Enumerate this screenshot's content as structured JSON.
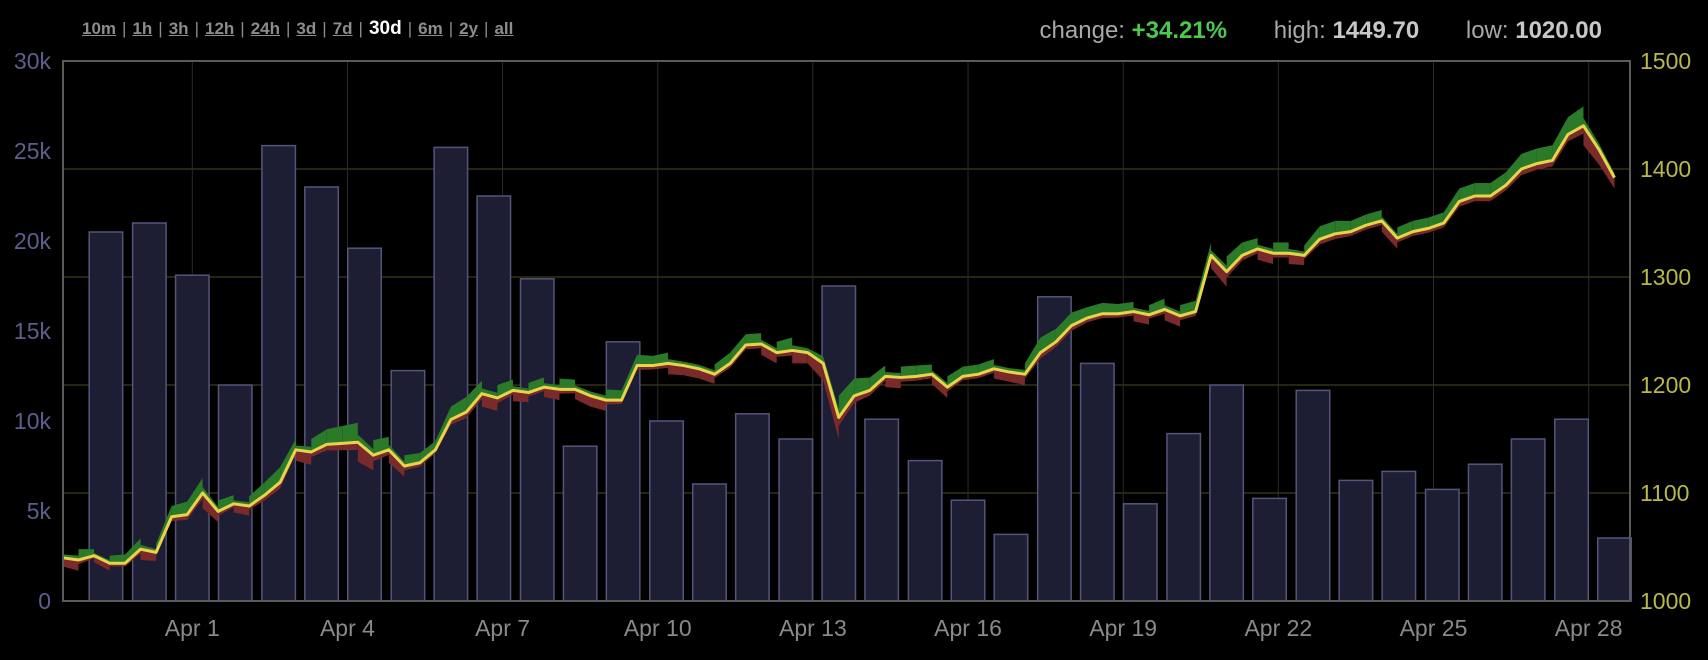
{
  "ranges": [
    {
      "label": "10m",
      "active": false
    },
    {
      "label": "1h",
      "active": false
    },
    {
      "label": "3h",
      "active": false
    },
    {
      "label": "12h",
      "active": false
    },
    {
      "label": "24h",
      "active": false
    },
    {
      "label": "3d",
      "active": false
    },
    {
      "label": "7d",
      "active": false
    },
    {
      "label": "30d",
      "active": true
    },
    {
      "label": "6m",
      "active": false
    },
    {
      "label": "2y",
      "active": false
    },
    {
      "label": "all",
      "active": false
    }
  ],
  "stats": {
    "change_label": "change:",
    "change_value": "+34.21%",
    "high_label": "high:",
    "high_value": "1449.70",
    "low_label": "low:",
    "low_value": "1020.00"
  },
  "colors": {
    "volume_bar": "#1d1d33",
    "volume_bar_border": "#55557a",
    "price_line": "#e8d44a",
    "band_up": "#2a7a2a",
    "band_down": "#7a2a2a",
    "grid_h": "#4a4a22",
    "grid_v": "#2a2a2a",
    "frame": "#5a5a5a"
  },
  "chart_data": {
    "type": "bar+line",
    "x_ticks": [
      "Apr 1",
      "Apr 4",
      "Apr 7",
      "Apr 10",
      "Apr 13",
      "Apr 16",
      "Apr 19",
      "Apr 22",
      "Apr 25",
      "Apr 28"
    ],
    "x_range": [
      -1.5,
      28.8
    ],
    "left_axis": {
      "range": [
        0,
        30000
      ],
      "tick_labels": [
        "0",
        "5k",
        "10k",
        "15k",
        "20k",
        "25k",
        "30k"
      ],
      "tick_values": [
        0,
        5000,
        10000,
        15000,
        20000,
        25000,
        30000
      ]
    },
    "right_axis": {
      "range": [
        1000,
        1500
      ],
      "tick_labels": [
        "1000",
        "1100",
        "1200",
        "1300",
        "1400",
        "1500"
      ],
      "tick_values": [
        1000,
        1100,
        1200,
        1300,
        1400,
        1500
      ]
    },
    "volume": {
      "x": [
        -0.67,
        0.17,
        1.0,
        1.83,
        2.67,
        3.5,
        4.33,
        5.17,
        6.0,
        6.83,
        7.67,
        8.5,
        9.33,
        10.17,
        11.0,
        11.83,
        12.67,
        13.5,
        14.33,
        15.17,
        16.0,
        16.83,
        17.67,
        18.5,
        19.33,
        20.17,
        21.0,
        21.83,
        22.67,
        23.5,
        24.33,
        25.17,
        26.0,
        26.83,
        27.67,
        28.5
      ],
      "values": [
        20500,
        21000,
        18100,
        12000,
        25300,
        23000,
        19600,
        12800,
        25200,
        22500,
        17900,
        8600,
        14400,
        10000,
        6500,
        10400,
        9000,
        17500,
        10100,
        7800,
        5600,
        3700,
        16900,
        13200,
        5400,
        9300,
        12000,
        5700,
        11700,
        6700,
        7200,
        6200,
        7600,
        9000,
        10100,
        3500
      ]
    },
    "price": {
      "x": [
        -1.5,
        -1.2,
        -0.9,
        -0.6,
        -0.3,
        0.0,
        0.3,
        0.6,
        0.9,
        1.2,
        1.5,
        1.8,
        2.1,
        2.4,
        2.7,
        3.0,
        3.3,
        3.6,
        3.9,
        4.2,
        4.5,
        4.8,
        5.1,
        5.4,
        5.7,
        6.0,
        6.3,
        6.6,
        6.9,
        7.2,
        7.5,
        7.8,
        8.1,
        8.4,
        8.7,
        9.0,
        9.3,
        9.6,
        9.9,
        10.2,
        10.5,
        10.8,
        11.1,
        11.4,
        11.7,
        12.0,
        12.3,
        12.6,
        12.9,
        13.2,
        13.5,
        13.8,
        14.1,
        14.4,
        14.7,
        15.0,
        15.3,
        15.6,
        15.9,
        16.2,
        16.5,
        16.8,
        17.1,
        17.4,
        17.7,
        18.0,
        18.3,
        18.6,
        18.9,
        19.2,
        19.5,
        19.8,
        20.1,
        20.4,
        20.7,
        21.0,
        21.3,
        21.6,
        21.9,
        22.2,
        22.5,
        22.8,
        23.1,
        23.4,
        23.7,
        24.0,
        24.3,
        24.6,
        24.9,
        25.2,
        25.5,
        25.8,
        26.1,
        26.4,
        26.7,
        27.0,
        27.3,
        27.6,
        27.9,
        28.2,
        28.5
      ],
      "values": [
        1040,
        1038,
        1042,
        1035,
        1035,
        1048,
        1045,
        1078,
        1080,
        1100,
        1083,
        1090,
        1088,
        1098,
        1110,
        1140,
        1138,
        1145,
        1146,
        1147,
        1135,
        1140,
        1125,
        1128,
        1140,
        1168,
        1175,
        1192,
        1188,
        1195,
        1193,
        1198,
        1196,
        1196,
        1190,
        1186,
        1186,
        1218,
        1218,
        1220,
        1218,
        1215,
        1210,
        1220,
        1237,
        1238,
        1230,
        1232,
        1230,
        1220,
        1170,
        1190,
        1195,
        1208,
        1207,
        1208,
        1210,
        1198,
        1208,
        1210,
        1215,
        1212,
        1210,
        1230,
        1240,
        1255,
        1262,
        1266,
        1266,
        1268,
        1265,
        1270,
        1264,
        1268,
        1320,
        1305,
        1320,
        1326,
        1322,
        1322,
        1320,
        1335,
        1340,
        1342,
        1348,
        1352,
        1336,
        1342,
        1345,
        1350,
        1370,
        1375,
        1375,
        1385,
        1400,
        1405,
        1408,
        1432,
        1440,
        1418,
        1392
      ],
      "band_width": [
        8,
        10,
        6,
        7,
        8,
        10,
        8,
        10,
        12,
        14,
        10,
        8,
        9,
        12,
        14,
        10,
        12,
        14,
        16,
        18,
        14,
        12,
        10,
        9,
        8,
        12,
        14,
        12,
        12,
        10,
        9,
        9,
        10,
        9,
        10,
        10,
        9,
        10,
        9,
        10,
        9,
        9,
        9,
        10,
        10,
        10,
        10,
        12,
        10,
        16,
        20,
        16,
        12,
        10,
        10,
        10,
        9,
        10,
        9,
        9,
        9,
        9,
        10,
        14,
        12,
        12,
        10,
        10,
        9,
        9,
        9,
        10,
        10,
        10,
        12,
        14,
        12,
        10,
        10,
        10,
        9,
        12,
        12,
        10,
        10,
        10,
        10,
        10,
        10,
        10,
        12,
        12,
        12,
        12,
        14,
        14,
        14,
        16,
        18,
        14,
        10
      ]
    }
  }
}
